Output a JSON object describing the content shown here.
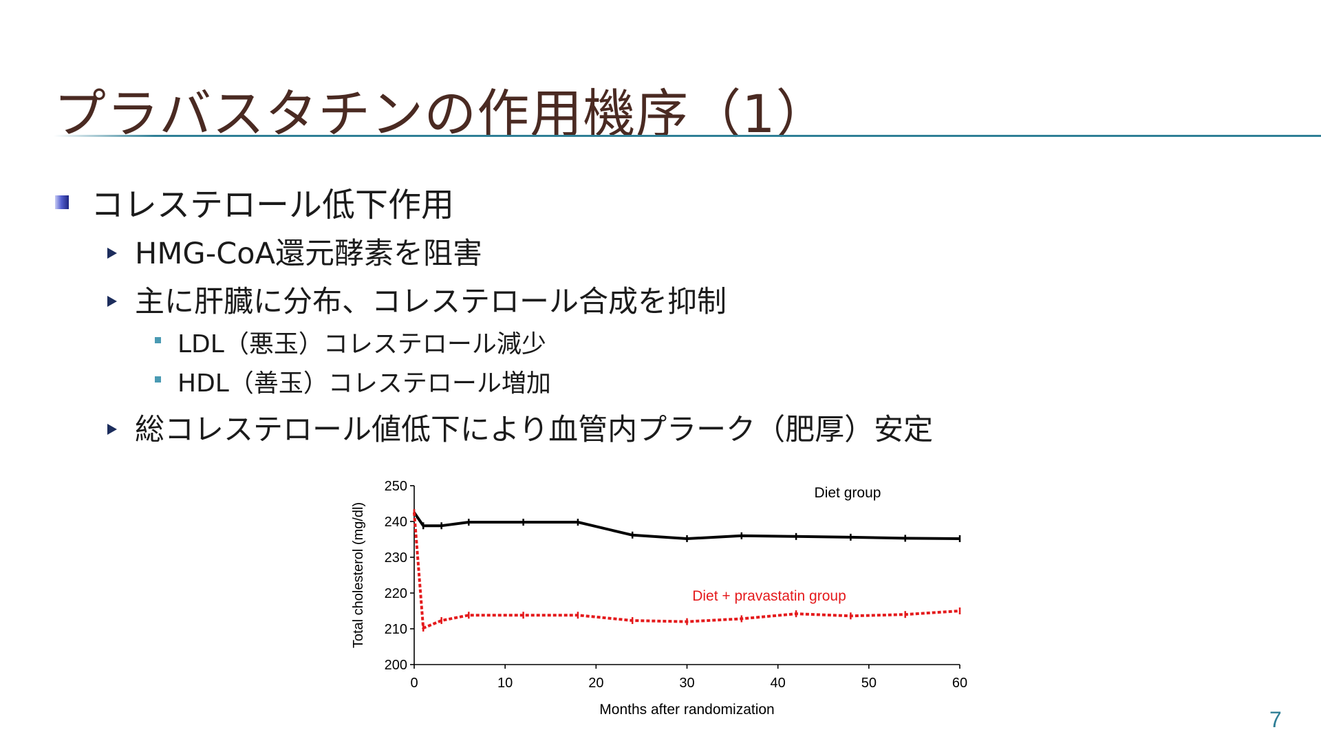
{
  "slide": {
    "title": "プラバスタチンの作用機序（1）",
    "page_number": "7",
    "bullets": {
      "l1": "コレステロール低下作用",
      "b1": "HMG-CoA還元酵素を阻害",
      "b2": "主に肝臓に分布、コレステロール合成を抑制",
      "s1": "LDL（悪玉）コレステロール減少",
      "s2": "HDL（善玉）コレステロール増加",
      "b3": "総コレステロール値低下により血管内プラーク（肥厚）安定"
    }
  },
  "chart_data": {
    "type": "line",
    "xlabel": "Months after randomization",
    "ylabel": "Total cholesterol (mg/dl)",
    "xlim": [
      0,
      60
    ],
    "ylim": [
      200,
      250
    ],
    "xticks": [
      0,
      10,
      20,
      30,
      40,
      50,
      60
    ],
    "yticks": [
      200,
      210,
      220,
      230,
      240,
      250
    ],
    "grid": false,
    "series": [
      {
        "name": "Diet group",
        "color": "#000000",
        "style": "solid",
        "x": [
          0,
          1,
          3,
          6,
          12,
          18,
          24,
          30,
          36,
          42,
          48,
          54,
          60
        ],
        "y": [
          242.5,
          238.8,
          238.8,
          239.8,
          239.8,
          239.8,
          236.2,
          235.2,
          236.0,
          235.8,
          235.6,
          235.3,
          235.2
        ]
      },
      {
        "name": "Diet + pravastatin group",
        "color": "#e41a1c",
        "style": "dotted",
        "x": [
          0,
          1,
          3,
          6,
          12,
          18,
          24,
          30,
          36,
          42,
          48,
          54,
          60
        ],
        "y": [
          242.5,
          210.2,
          212.3,
          213.8,
          213.8,
          213.8,
          212.3,
          212.0,
          212.8,
          214.2,
          213.6,
          214.0,
          215.0
        ]
      }
    ]
  }
}
